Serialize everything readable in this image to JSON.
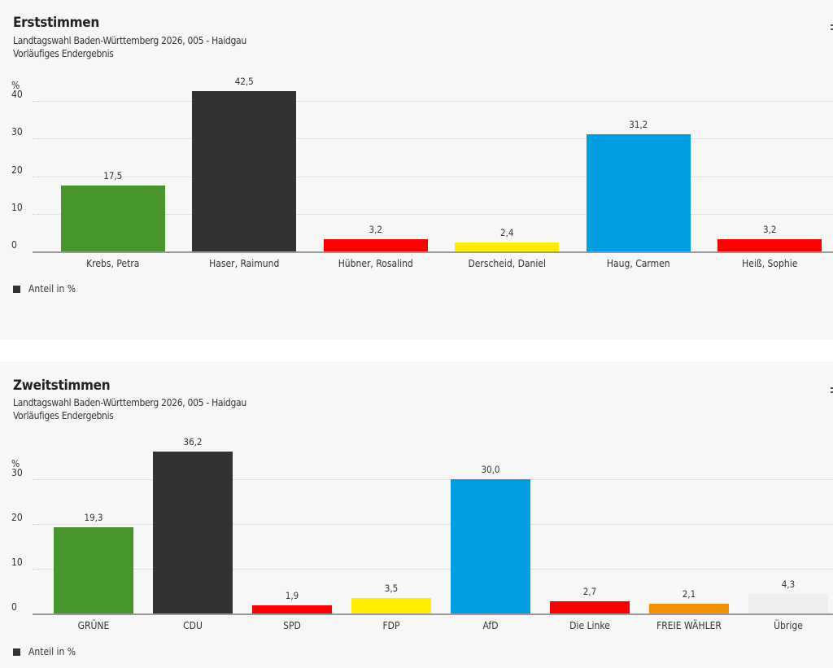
{
  "chart_data": [
    {
      "type": "bar",
      "title": "Erststimmen",
      "subtitle": "Landtagswahl Baden-Württemberg 2026, 005 - Haidgau",
      "subtitle2": "Vorläufiges Endergebnis",
      "ylabel": "%",
      "ylim": [
        0,
        40
      ],
      "yticks": [
        0,
        10,
        20,
        30,
        40
      ],
      "ytick_labels": [
        "0",
        "10",
        "20",
        "30",
        "40"
      ],
      "grid": true,
      "categories": [
        "Krebs, Petra",
        "Haser, Raimund",
        "Hübner, Rosalind",
        "Derscheid, Daniel",
        "Haug, Carmen",
        "Heiß, Sophie"
      ],
      "values": [
        17.5,
        42.5,
        3.2,
        2.4,
        31.2,
        3.2
      ],
      "value_labels": [
        "17,5",
        "42,5",
        "3,2",
        "2,4",
        "31,2",
        "3,2"
      ],
      "colors": [
        "#46962b",
        "#323232",
        "#ff0000",
        "#ffed00",
        "#009ee0",
        "#ff0000"
      ],
      "legend": "Anteil in %",
      "legend_placement": "bottom-left"
    },
    {
      "type": "bar",
      "title": "Zweitstimmen",
      "subtitle": "Landtagswahl Baden-Württemberg 2026, 005 - Haidgau",
      "subtitle2": "Vorläufiges Endergebnis",
      "ylabel": "%",
      "ylim": [
        0,
        30
      ],
      "yticks": [
        0,
        10,
        20,
        30
      ],
      "ytick_labels": [
        "0",
        "10",
        "20",
        "30"
      ],
      "grid": true,
      "categories": [
        "GRÜNE",
        "CDU",
        "SPD",
        "FDP",
        "AfD",
        "Die Linke",
        "FREIE WÄHLER",
        "Übrige"
      ],
      "values": [
        19.3,
        36.2,
        1.9,
        3.5,
        30.0,
        2.7,
        2.1,
        4.3
      ],
      "value_labels": [
        "19,3",
        "36,2",
        "1,9",
        "3,5",
        "30,0",
        "2,7",
        "2,1",
        "4,3"
      ],
      "colors": [
        "#46962b",
        "#323232",
        "#ff0000",
        "#ffed00",
        "#009ee0",
        "#ff0000",
        "#f39200",
        "#eeeeee"
      ],
      "legend": "Anteil in %",
      "legend_placement": "bottom-left"
    }
  ]
}
